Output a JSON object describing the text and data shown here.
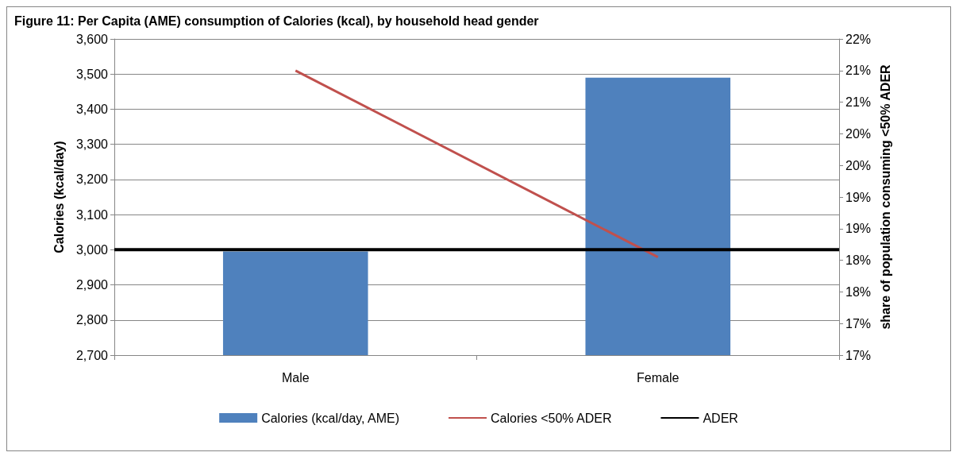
{
  "chart_data": {
    "type": "bar",
    "title": "Figure 11: Per Capita (AME) consumption of Calories (kcal), by household head gender",
    "ylabel": "Calories (kcal/day)",
    "y2label": "share of population consuming <50% ADER",
    "categories": [
      "Male",
      "Female"
    ],
    "series": [
      {
        "name": "Calories (kcal/day, AME)",
        "color": "#4f81bd",
        "values": [
          2995,
          3490
        ]
      },
      {
        "name": "Calories <50% ADER",
        "type": "line",
        "axis": "y2",
        "color": "#c0504d",
        "values": [
          21.5,
          18.55
        ]
      }
    ],
    "ylim": [
      2700,
      3600
    ],
    "yticks": [
      {
        "value": 2700,
        "label": "2,700"
      },
      {
        "value": 2800,
        "label": "2,800"
      },
      {
        "value": 2900,
        "label": "2,900"
      },
      {
        "value": 3000,
        "label": "3,000"
      },
      {
        "value": 3100,
        "label": "3,100"
      },
      {
        "value": 3200,
        "label": "3,200"
      },
      {
        "value": 3300,
        "label": "3,300"
      },
      {
        "value": 3400,
        "label": "3,400"
      },
      {
        "value": 3500,
        "label": "3,500"
      },
      {
        "value": 3600,
        "label": "3,600"
      }
    ],
    "y2lim": [
      17,
      22
    ],
    "y2ticks": [
      {
        "value": 17,
        "label": "17%"
      },
      {
        "value": 17.5,
        "label": "17%"
      },
      {
        "value": 18,
        "label": "18%"
      },
      {
        "value": 18.5,
        "label": "18%"
      },
      {
        "value": 19,
        "label": "19%"
      },
      {
        "value": 19.5,
        "label": "19%"
      },
      {
        "value": 20,
        "label": "20%"
      },
      {
        "value": 20.5,
        "label": "20%"
      },
      {
        "value": 21,
        "label": "21%"
      },
      {
        "value": 21.5,
        "label": "21%"
      },
      {
        "value": 22,
        "label": "22%"
      }
    ],
    "ref_lines": [
      {
        "axis": "y",
        "value": 3000,
        "label": "ADER",
        "color": "#000000"
      }
    ],
    "grid": "y",
    "legend": "bottom",
    "marker": "none",
    "line_style": "solid"
  }
}
